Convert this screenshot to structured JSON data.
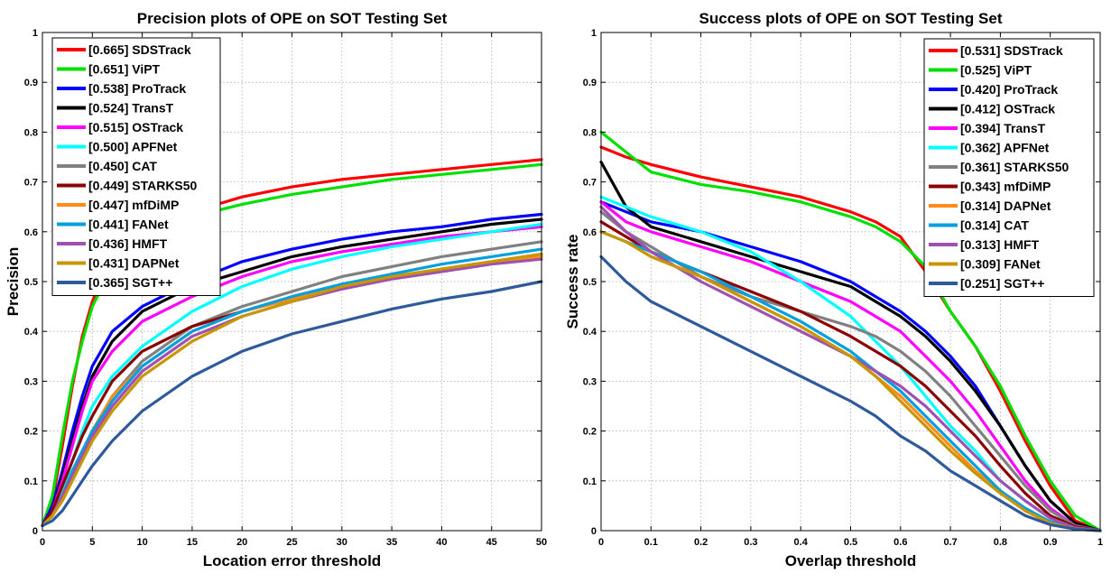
{
  "chart_data": [
    {
      "type": "line",
      "title": "Precision plots of OPE on SOT Testing Set",
      "xlabel": "Location error threshold",
      "ylabel": "Precision",
      "xlim": [
        0,
        50
      ],
      "ylim": [
        0,
        1
      ],
      "xticks": [
        "0",
        "5",
        "10",
        "15",
        "20",
        "25",
        "30",
        "35",
        "40",
        "45",
        "50"
      ],
      "yticks": [
        "0",
        "0.1",
        "0.2",
        "0.3",
        "0.4",
        "0.5",
        "0.6",
        "0.7",
        "0.8",
        "0.9",
        "1"
      ],
      "grid": true,
      "legend_position": "top-left",
      "x": [
        0,
        1,
        2,
        3,
        4,
        5,
        7,
        10,
        15,
        20,
        25,
        30,
        35,
        40,
        45,
        50
      ],
      "series": [
        {
          "name": "[0.665] SDSTrack",
          "color": "#ff0000",
          "values": [
            0.01,
            0.06,
            0.17,
            0.29,
            0.39,
            0.46,
            0.55,
            0.6,
            0.64,
            0.67,
            0.69,
            0.705,
            0.715,
            0.725,
            0.735,
            0.745
          ]
        },
        {
          "name": "[0.651] ViPT",
          "color": "#00e000",
          "values": [
            0.01,
            0.07,
            0.19,
            0.3,
            0.38,
            0.45,
            0.53,
            0.59,
            0.63,
            0.655,
            0.675,
            0.69,
            0.705,
            0.715,
            0.725,
            0.735
          ]
        },
        {
          "name": "[0.538] ProTrack",
          "color": "#0000ff",
          "values": [
            0.01,
            0.05,
            0.12,
            0.2,
            0.27,
            0.33,
            0.4,
            0.45,
            0.5,
            0.54,
            0.565,
            0.585,
            0.6,
            0.61,
            0.625,
            0.635
          ]
        },
        {
          "name": "[0.524] TransT",
          "color": "#000000",
          "values": [
            0.01,
            0.04,
            0.11,
            0.18,
            0.25,
            0.31,
            0.38,
            0.44,
            0.49,
            0.52,
            0.55,
            0.57,
            0.585,
            0.6,
            0.615,
            0.625
          ]
        },
        {
          "name": "[0.515] OSTrack",
          "color": "#ff00ff",
          "values": [
            0.01,
            0.04,
            0.1,
            0.17,
            0.24,
            0.3,
            0.36,
            0.42,
            0.47,
            0.51,
            0.54,
            0.56,
            0.575,
            0.59,
            0.6,
            0.61
          ]
        },
        {
          "name": "[0.500] APFNet",
          "color": "#00ffff",
          "values": [
            0.01,
            0.03,
            0.08,
            0.14,
            0.2,
            0.25,
            0.31,
            0.37,
            0.44,
            0.49,
            0.525,
            0.55,
            0.57,
            0.585,
            0.6,
            0.615
          ]
        },
        {
          "name": "[0.450] CAT",
          "color": "#808080",
          "values": [
            0.01,
            0.03,
            0.07,
            0.12,
            0.16,
            0.2,
            0.27,
            0.34,
            0.41,
            0.45,
            0.48,
            0.51,
            0.53,
            0.55,
            0.565,
            0.58
          ]
        },
        {
          "name": "[0.449] STARKS50",
          "color": "#8b0000",
          "values": [
            0.01,
            0.04,
            0.09,
            0.14,
            0.19,
            0.23,
            0.3,
            0.36,
            0.41,
            0.44,
            0.465,
            0.49,
            0.51,
            0.525,
            0.54,
            0.555
          ]
        },
        {
          "name": "[0.447] mfDiMP",
          "color": "#ff8c1a",
          "values": [
            0.01,
            0.03,
            0.07,
            0.12,
            0.16,
            0.2,
            0.27,
            0.33,
            0.4,
            0.44,
            0.465,
            0.49,
            0.51,
            0.525,
            0.54,
            0.55
          ]
        },
        {
          "name": "[0.441] FANet",
          "color": "#00a0e0",
          "values": [
            0.01,
            0.03,
            0.07,
            0.12,
            0.16,
            0.2,
            0.26,
            0.33,
            0.4,
            0.44,
            0.47,
            0.495,
            0.515,
            0.535,
            0.55,
            0.565
          ]
        },
        {
          "name": "[0.436] HMFT",
          "color": "#a050b0",
          "values": [
            0.01,
            0.03,
            0.07,
            0.11,
            0.15,
            0.19,
            0.25,
            0.32,
            0.39,
            0.43,
            0.46,
            0.485,
            0.505,
            0.52,
            0.535,
            0.545
          ]
        },
        {
          "name": "[0.431] DAPNet",
          "color": "#c89600",
          "values": [
            0.01,
            0.03,
            0.06,
            0.1,
            0.14,
            0.18,
            0.24,
            0.31,
            0.38,
            0.43,
            0.46,
            0.49,
            0.51,
            0.525,
            0.54,
            0.555
          ]
        },
        {
          "name": "[0.365] SGT++",
          "color": "#2e5a9c",
          "values": [
            0.01,
            0.02,
            0.04,
            0.07,
            0.1,
            0.13,
            0.18,
            0.24,
            0.31,
            0.36,
            0.395,
            0.42,
            0.445,
            0.465,
            0.48,
            0.5
          ]
        }
      ]
    },
    {
      "type": "line",
      "title": "Success plots of OPE on SOT Testing Set",
      "xlabel": "Overlap threshold",
      "ylabel": "Success rate",
      "xlim": [
        0,
        1
      ],
      "ylim": [
        0,
        1
      ],
      "xticks": [
        "0",
        "0.1",
        "0.2",
        "0.3",
        "0.4",
        "0.5",
        "0.6",
        "0.7",
        "0.8",
        "0.9",
        "1"
      ],
      "yticks": [
        "0",
        "0.1",
        "0.2",
        "0.3",
        "0.4",
        "0.5",
        "0.6",
        "0.7",
        "0.8",
        "0.9",
        "1"
      ],
      "grid": true,
      "legend_position": "top-right",
      "x": [
        0,
        0.05,
        0.1,
        0.2,
        0.3,
        0.4,
        0.5,
        0.55,
        0.6,
        0.65,
        0.7,
        0.75,
        0.8,
        0.85,
        0.9,
        0.95,
        1
      ],
      "series": [
        {
          "name": "[0.531] SDSTrack",
          "color": "#ff0000",
          "values": [
            0.77,
            0.75,
            0.735,
            0.71,
            0.69,
            0.67,
            0.64,
            0.62,
            0.59,
            0.52,
            0.44,
            0.37,
            0.28,
            0.18,
            0.09,
            0.02,
            0.0
          ]
        },
        {
          "name": "[0.525] ViPT",
          "color": "#00e000",
          "values": [
            0.8,
            0.76,
            0.72,
            0.695,
            0.68,
            0.66,
            0.63,
            0.61,
            0.58,
            0.53,
            0.44,
            0.37,
            0.29,
            0.19,
            0.1,
            0.03,
            0.0
          ]
        },
        {
          "name": "[0.420] ProTrack",
          "color": "#0000ff",
          "values": [
            0.66,
            0.64,
            0.62,
            0.6,
            0.57,
            0.54,
            0.5,
            0.47,
            0.44,
            0.4,
            0.35,
            0.29,
            0.21,
            0.13,
            0.06,
            0.015,
            0.0
          ]
        },
        {
          "name": "[0.412] OSTrack",
          "color": "#000000",
          "values": [
            0.74,
            0.65,
            0.61,
            0.58,
            0.55,
            0.52,
            0.49,
            0.46,
            0.43,
            0.39,
            0.34,
            0.28,
            0.21,
            0.13,
            0.06,
            0.015,
            0.0
          ]
        },
        {
          "name": "[0.394] TransT",
          "color": "#ff00ff",
          "values": [
            0.66,
            0.62,
            0.6,
            0.57,
            0.54,
            0.5,
            0.46,
            0.43,
            0.4,
            0.35,
            0.3,
            0.24,
            0.17,
            0.1,
            0.045,
            0.01,
            0.0
          ]
        },
        {
          "name": "[0.362] APFNet",
          "color": "#00ffff",
          "values": [
            0.67,
            0.65,
            0.63,
            0.6,
            0.56,
            0.5,
            0.43,
            0.38,
            0.33,
            0.27,
            0.21,
            0.16,
            0.1,
            0.06,
            0.025,
            0.005,
            0.0
          ]
        },
        {
          "name": "[0.361] STARKS50",
          "color": "#808080",
          "values": [
            0.64,
            0.6,
            0.57,
            0.51,
            0.47,
            0.44,
            0.41,
            0.39,
            0.36,
            0.32,
            0.27,
            0.21,
            0.15,
            0.09,
            0.04,
            0.01,
            0.0
          ]
        },
        {
          "name": "[0.343] mfDiMP",
          "color": "#8b0000",
          "values": [
            0.62,
            0.59,
            0.56,
            0.52,
            0.48,
            0.44,
            0.39,
            0.36,
            0.33,
            0.29,
            0.24,
            0.19,
            0.13,
            0.075,
            0.03,
            0.008,
            0.0
          ]
        },
        {
          "name": "[0.314] DAPNet",
          "color": "#ff8c1a",
          "values": [
            0.6,
            0.58,
            0.55,
            0.51,
            0.46,
            0.41,
            0.35,
            0.31,
            0.27,
            0.22,
            0.17,
            0.12,
            0.08,
            0.04,
            0.015,
            0.003,
            0.0
          ]
        },
        {
          "name": "[0.314] CAT",
          "color": "#00a0e0",
          "values": [
            0.6,
            0.58,
            0.56,
            0.52,
            0.47,
            0.42,
            0.36,
            0.32,
            0.28,
            0.23,
            0.18,
            0.13,
            0.08,
            0.045,
            0.018,
            0.004,
            0.0
          ]
        },
        {
          "name": "[0.313] HMFT",
          "color": "#a050b0",
          "values": [
            0.65,
            0.6,
            0.56,
            0.5,
            0.45,
            0.4,
            0.35,
            0.32,
            0.29,
            0.25,
            0.2,
            0.15,
            0.1,
            0.06,
            0.025,
            0.006,
            0.0
          ]
        },
        {
          "name": "[0.309] FANet",
          "color": "#c89600",
          "values": [
            0.6,
            0.58,
            0.55,
            0.51,
            0.46,
            0.41,
            0.35,
            0.31,
            0.26,
            0.21,
            0.16,
            0.115,
            0.075,
            0.04,
            0.015,
            0.003,
            0.0
          ]
        },
        {
          "name": "[0.251] SGT++",
          "color": "#2e5a9c",
          "values": [
            0.55,
            0.5,
            0.46,
            0.41,
            0.36,
            0.31,
            0.26,
            0.23,
            0.19,
            0.16,
            0.12,
            0.09,
            0.06,
            0.03,
            0.012,
            0.003,
            0.0
          ]
        }
      ]
    }
  ]
}
